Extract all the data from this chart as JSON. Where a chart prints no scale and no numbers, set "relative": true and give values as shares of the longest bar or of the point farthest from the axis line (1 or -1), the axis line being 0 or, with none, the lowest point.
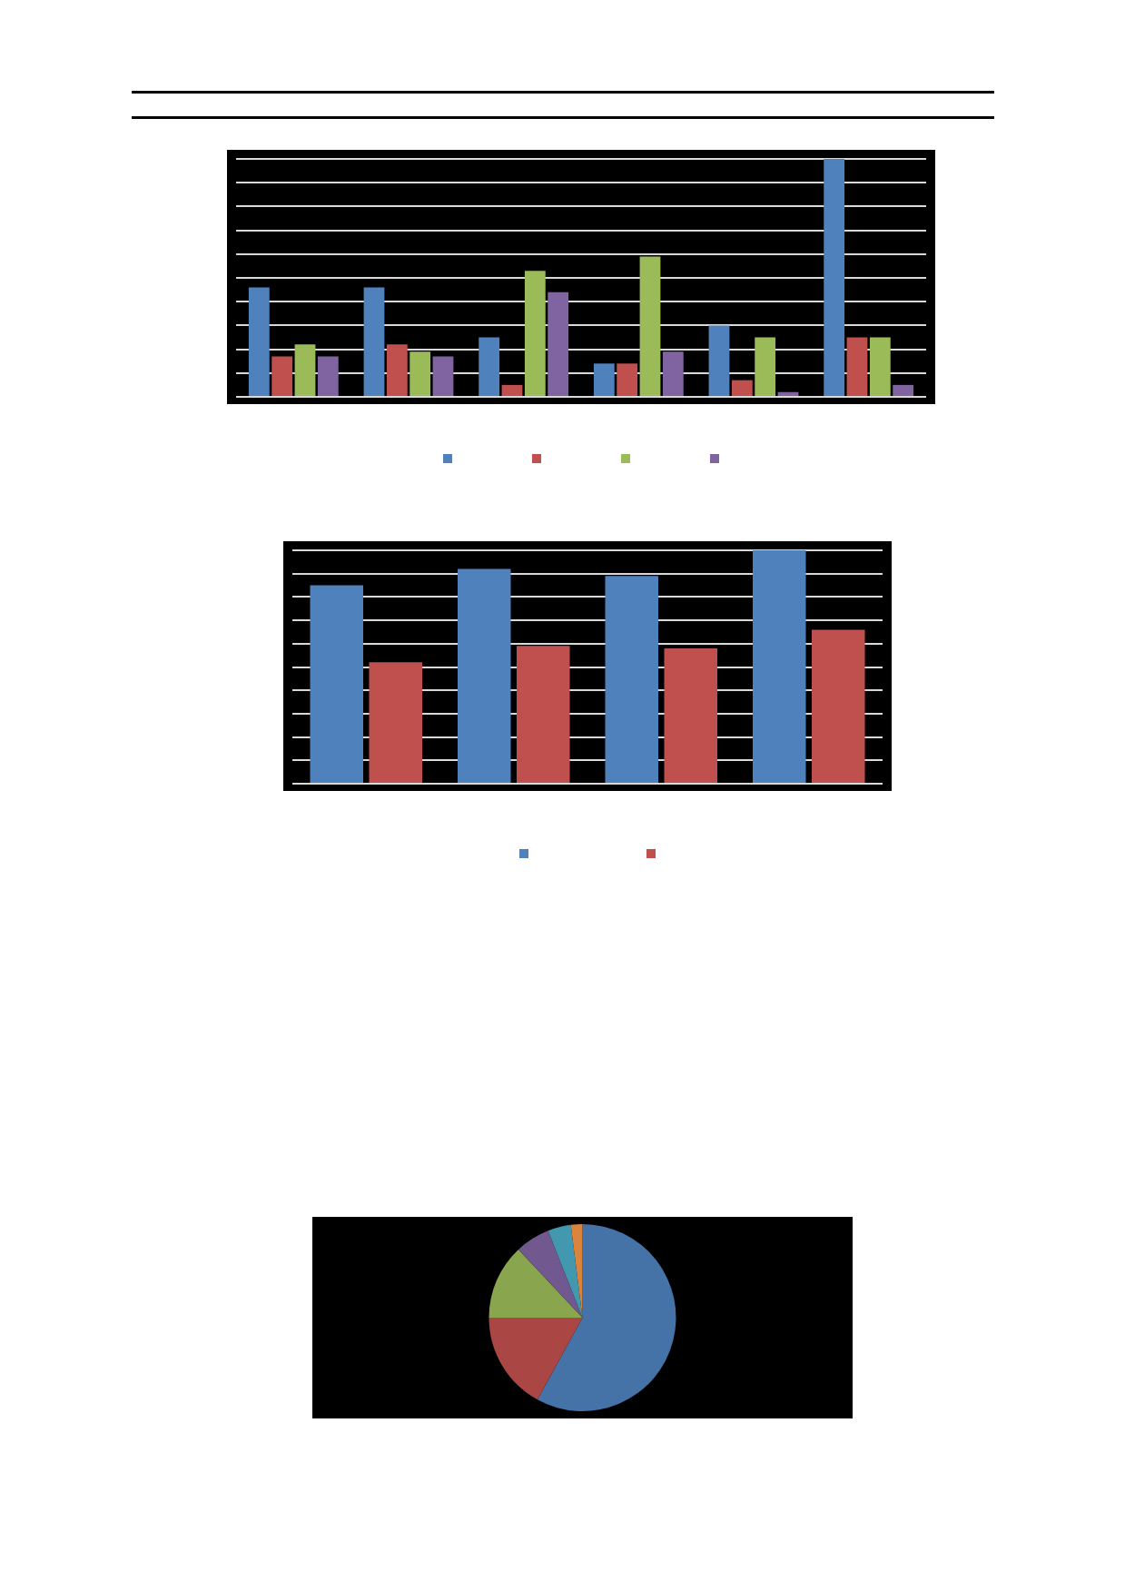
{
  "chart_data": [
    {
      "type": "bar",
      "relative": true,
      "grid": "y",
      "tick_labels": false,
      "categories": [
        null,
        null,
        null,
        null,
        null,
        null
      ],
      "series": [
        {
          "color": "#4f81bd",
          "values": [
            0.46,
            0.46,
            0.25,
            0.14,
            0.3,
            1
          ]
        },
        {
          "color": "#c0504d",
          "values": [
            0.17,
            0.22,
            0.05,
            0.14,
            0.07,
            0.25
          ]
        },
        {
          "color": "#9bbb59",
          "values": [
            0.22,
            0.19,
            0.53,
            0.59,
            0.25,
            0.25
          ]
        },
        {
          "color": "#8064a2",
          "values": [
            0.17,
            0.17,
            0.44,
            0.19,
            0.02,
            0.05
          ]
        }
      ]
    },
    {
      "type": "bar",
      "relative": true,
      "grid": "y",
      "tick_labels": false,
      "categories": [
        null,
        null,
        null,
        null
      ],
      "series": [
        {
          "color": "#4f81bd",
          "values": [
            0.85,
            0.92,
            0.89,
            1
          ]
        },
        {
          "color": "#c0504d",
          "values": [
            0.52,
            0.59,
            0.58,
            0.66
          ]
        }
      ]
    },
    {
      "type": "pie",
      "categories": [
        null,
        null,
        null,
        null,
        null,
        null
      ],
      "values": [
        58,
        17,
        13,
        6,
        4,
        2
      ],
      "colors": [
        "#4572a7",
        "#aa4643",
        "#89a54e",
        "#71588f",
        "#4198af",
        "#db843d"
      ]
    }
  ]
}
